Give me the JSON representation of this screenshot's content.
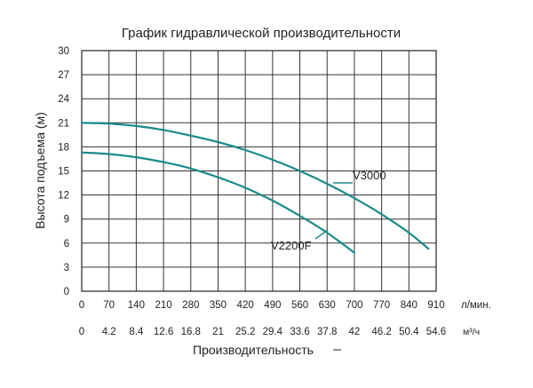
{
  "chart_data": {
    "type": "line",
    "title": "График гидравлической производительности",
    "xlabel": "Производительность",
    "ylabel": "Высота подъема (м)",
    "xlim": [
      0,
      910
    ],
    "ylim": [
      0,
      30
    ],
    "x_ticks": [
      0,
      70,
      140,
      210,
      280,
      350,
      420,
      490,
      560,
      630,
      700,
      770,
      840,
      910
    ],
    "x_unit": "л/мин.",
    "x2_ticks": [
      "0",
      "4.2",
      "8.4",
      "12.6",
      "16.8",
      "21",
      "25.2",
      "29.4",
      "33.6",
      "37.8",
      "42",
      "46.2",
      "50.4",
      "54.6"
    ],
    "x2_unit": "м³/ч",
    "y_ticks": [
      0,
      3,
      6,
      9,
      12,
      15,
      18,
      21,
      24,
      27,
      30
    ],
    "grid": true,
    "series_color": "#1a8a8a",
    "series": [
      {
        "name": "V3000",
        "x": [
          0,
          70,
          140,
          210,
          280,
          350,
          420,
          490,
          560,
          630,
          700,
          770,
          840,
          890
        ],
        "y": [
          21.0,
          20.9,
          20.6,
          20.1,
          19.4,
          18.6,
          17.6,
          16.4,
          15.0,
          13.4,
          11.6,
          9.6,
          7.3,
          5.3
        ]
      },
      {
        "name": "V2200F",
        "x": [
          0,
          70,
          140,
          210,
          280,
          350,
          420,
          490,
          560,
          630,
          700
        ],
        "y": [
          17.3,
          17.1,
          16.7,
          16.1,
          15.3,
          14.2,
          12.9,
          11.3,
          9.4,
          7.3,
          4.8
        ]
      }
    ]
  }
}
